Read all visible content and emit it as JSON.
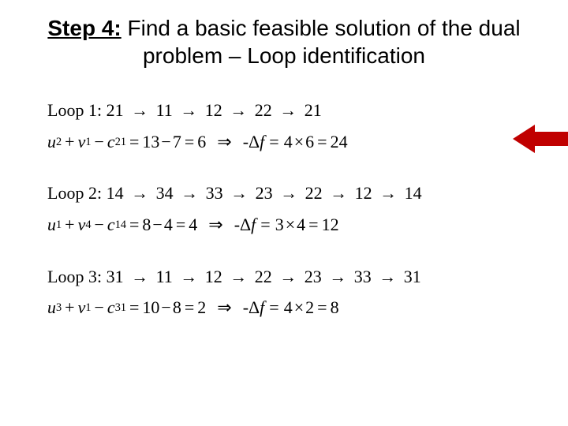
{
  "title": {
    "step_label": "Step 4:",
    "rest": " Find a basic feasible solution of the dual problem – Loop identification"
  },
  "fonts": {
    "title_family": "Arial",
    "title_size_pt": 28,
    "body_family": "Times New Roman",
    "body_size_pt": 22
  },
  "colors": {
    "background": "#ffffff",
    "text": "#000000",
    "pointer_arrow": "#c00000"
  },
  "loops": [
    {
      "label": "Loop 1:",
      "path": [
        "21",
        "11",
        "12",
        "22",
        "21"
      ],
      "lhs_terms": {
        "u_sub": "2",
        "v_sub": "1",
        "c_sub": "21"
      },
      "rhs_calc": {
        "a": "13",
        "b": "7",
        "result": "6"
      },
      "delta_f": {
        "a": "4",
        "b": "6",
        "result": "24"
      },
      "pointer": true
    },
    {
      "label": "Loop 2:",
      "path": [
        "14",
        "34",
        "33",
        "23",
        "22",
        "12",
        "14"
      ],
      "lhs_terms": {
        "u_sub": "1",
        "v_sub": "4",
        "c_sub": "14"
      },
      "rhs_calc": {
        "a": "8",
        "b": "4",
        "result": "4"
      },
      "delta_f": {
        "a": "3",
        "b": "4",
        "result": "12"
      },
      "pointer": false
    },
    {
      "label": "Loop 3:",
      "path": [
        "31",
        "11",
        "12",
        "22",
        "23",
        "33",
        "31"
      ],
      "lhs_terms": {
        "u_sub": "3",
        "v_sub": "1",
        "c_sub": "31"
      },
      "rhs_calc": {
        "a": "10",
        "b": "8",
        "result": "2"
      },
      "delta_f": {
        "a": "4",
        "b": "2",
        "result": "8"
      },
      "pointer": false
    }
  ],
  "symbols": {
    "path_arrow": "→",
    "implies": "⇒",
    "plus": "+",
    "minus": "−",
    "equals": "=",
    "times": "×",
    "neg_delta_f_prefix": "-Δ",
    "u": "u",
    "v": "v",
    "c": "c",
    "f": "f"
  }
}
